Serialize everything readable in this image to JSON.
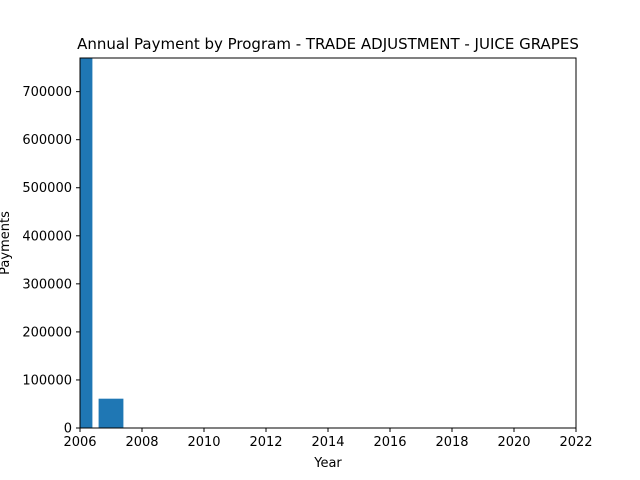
{
  "chart_data": {
    "type": "bar",
    "title": "Annual Payment by Program - TRADE ADJUSTMENT - JUICE GRAPES",
    "xlabel": "Year",
    "ylabel": "Payments",
    "x": [
      2006,
      2007
    ],
    "values": [
      770000,
      61000
    ],
    "xlim": [
      2006,
      2022
    ],
    "ylim": [
      0,
      770000
    ],
    "xticks": [
      2006,
      2008,
      2010,
      2012,
      2014,
      2016,
      2018,
      2020,
      2022
    ],
    "yticks": [
      0,
      100000,
      200000,
      300000,
      400000,
      500000,
      600000,
      700000
    ],
    "bar_color": "#1f77b4",
    "grid": false,
    "legend": "none"
  }
}
